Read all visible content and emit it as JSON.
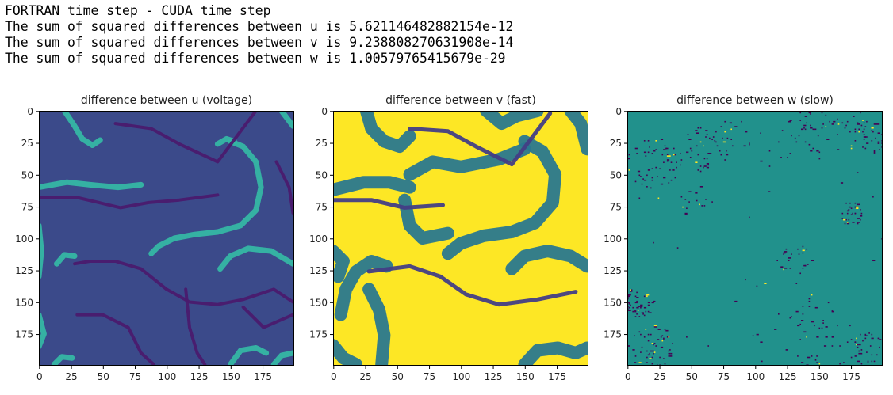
{
  "output_lines": [
    "FORTRAN time step - CUDA time step",
    "The sum of squared differences between u is 5.621146482882154e-12",
    "The sum of squared differences between v is 9.238808270631908e-14",
    "The sum of squared differences between w is 1.00579765415679e-29"
  ],
  "colors": {
    "viridis_dark": "#440154",
    "viridis_blue": "#3b528b",
    "viridis_teal": "#21918c",
    "viridis_green": "#5ec962",
    "viridis_yellow": "#fde725"
  },
  "chart_data": [
    {
      "type": "heatmap",
      "title": "difference between u (voltage)",
      "colormap": "viridis",
      "background": "#3b4a8a",
      "xlim": [
        0,
        199
      ],
      "ylim": [
        199,
        0
      ],
      "xticks": [
        0,
        25,
        50,
        75,
        100,
        125,
        150,
        175
      ],
      "yticks": [
        0,
        25,
        50,
        75,
        100,
        125,
        150,
        175
      ],
      "curves": [
        {
          "color": "#35b6a4",
          "width": 7,
          "points": [
            [
              20,
              0
            ],
            [
              28,
              12
            ],
            [
              34,
              22
            ],
            [
              42,
              27
            ],
            [
              48,
              23
            ]
          ]
        },
        {
          "color": "#35b6a4",
          "width": 7,
          "points": [
            [
              0,
              60
            ],
            [
              22,
              56
            ],
            [
              40,
              58
            ],
            [
              62,
              60
            ],
            [
              80,
              58
            ]
          ]
        },
        {
          "color": "#35b6a4",
          "width": 7,
          "points": [
            [
              150,
              24
            ],
            [
              160,
              28
            ],
            [
              170,
              40
            ],
            [
              174,
              60
            ],
            [
              170,
              78
            ],
            [
              158,
              90
            ],
            [
              140,
              95
            ],
            [
              122,
              97
            ],
            [
              106,
              100
            ],
            [
              94,
              106
            ],
            [
              88,
              112
            ]
          ]
        },
        {
          "color": "#35b6a4",
          "width": 7,
          "points": [
            [
              140,
              26
            ],
            [
              147,
              22
            ],
            [
              153,
              24
            ]
          ]
        },
        {
          "color": "#35b6a4",
          "width": 7,
          "points": [
            [
              142,
              124
            ],
            [
              150,
              114
            ],
            [
              164,
              108
            ],
            [
              182,
              110
            ],
            [
              199,
              120
            ]
          ]
        },
        {
          "color": "#35b6a4",
          "width": 7,
          "points": [
            [
              14,
              120
            ],
            [
              20,
              113
            ],
            [
              28,
              114
            ]
          ]
        },
        {
          "color": "#35b6a4",
          "width": 7,
          "points": [
            [
              0,
              90
            ],
            [
              2,
              110
            ],
            [
              0,
              130
            ]
          ]
        },
        {
          "color": "#35b6a4",
          "width": 7,
          "points": [
            [
              0,
              160
            ],
            [
              4,
              175
            ],
            [
              0,
              185
            ]
          ]
        },
        {
          "color": "#35b6a4",
          "width": 7,
          "points": [
            [
              150,
              199
            ],
            [
              158,
              188
            ],
            [
              170,
              186
            ],
            [
              178,
              190
            ]
          ]
        },
        {
          "color": "#35b6a4",
          "width": 7,
          "points": [
            [
              184,
              199
            ],
            [
              190,
              192
            ],
            [
              199,
              190
            ]
          ]
        },
        {
          "color": "#35b6a4",
          "width": 7,
          "points": [
            [
              12,
              199
            ],
            [
              18,
              193
            ],
            [
              26,
              194
            ]
          ]
        },
        {
          "color": "#35b6a4",
          "width": 7,
          "points": [
            [
              190,
              0
            ],
            [
              199,
              12
            ]
          ]
        },
        {
          "color": "#4a1a6e",
          "width": 4,
          "points": [
            [
              60,
              10
            ],
            [
              88,
              14
            ],
            [
              110,
              26
            ],
            [
              140,
              40
            ],
            [
              170,
              0
            ]
          ]
        },
        {
          "color": "#4a1a6e",
          "width": 4,
          "points": [
            [
              0,
              68
            ],
            [
              30,
              68
            ],
            [
              64,
              76
            ],
            [
              86,
              72
            ],
            [
              110,
              70
            ],
            [
              140,
              66
            ]
          ]
        },
        {
          "color": "#4a1a6e",
          "width": 4,
          "points": [
            [
              28,
              120
            ],
            [
              40,
              118
            ],
            [
              60,
              118
            ],
            [
              80,
              124
            ],
            [
              100,
              140
            ],
            [
              118,
              150
            ],
            [
              140,
              152
            ],
            [
              160,
              148
            ],
            [
              184,
              140
            ],
            [
              199,
              150
            ]
          ]
        },
        {
          "color": "#4a1a6e",
          "width": 4,
          "points": [
            [
              30,
              160
            ],
            [
              50,
              160
            ],
            [
              70,
              170
            ],
            [
              80,
              190
            ],
            [
              90,
              199
            ]
          ]
        },
        {
          "color": "#4a1a6e",
          "width": 4,
          "points": [
            [
              115,
              140
            ],
            [
              118,
              170
            ],
            [
              124,
              190
            ],
            [
              130,
              199
            ]
          ]
        },
        {
          "color": "#4a1a6e",
          "width": 4,
          "points": [
            [
              186,
              40
            ],
            [
              196,
              60
            ],
            [
              199,
              80
            ]
          ]
        },
        {
          "color": "#4a1a6e",
          "width": 4,
          "points": [
            [
              160,
              154
            ],
            [
              176,
              170
            ],
            [
              199,
              160
            ]
          ]
        }
      ]
    },
    {
      "type": "heatmap",
      "title": "difference between v (fast)",
      "colormap": "viridis",
      "background": "#fde725",
      "xlim": [
        0,
        199
      ],
      "ylim": [
        199,
        0
      ],
      "xticks": [
        0,
        25,
        50,
        75,
        100,
        125,
        150,
        175
      ],
      "yticks": [
        0,
        25,
        50,
        75,
        100,
        125,
        150,
        175
      ],
      "curves": [
        {
          "color": "#2a788e",
          "width": 16,
          "points": [
            [
              26,
              0
            ],
            [
              30,
              14
            ],
            [
              40,
              24
            ],
            [
              52,
              28
            ],
            [
              60,
              20
            ]
          ]
        },
        {
          "color": "#2a788e",
          "width": 16,
          "points": [
            [
              0,
              62
            ],
            [
              24,
              56
            ],
            [
              44,
              56
            ],
            [
              60,
              60
            ]
          ]
        },
        {
          "color": "#2a788e",
          "width": 16,
          "points": [
            [
              150,
              24
            ],
            [
              164,
              32
            ],
            [
              174,
              50
            ],
            [
              172,
              72
            ],
            [
              158,
              88
            ],
            [
              140,
              95
            ],
            [
              118,
              98
            ],
            [
              100,
              104
            ],
            [
              90,
              112
            ]
          ]
        },
        {
          "color": "#2a788e",
          "width": 16,
          "points": [
            [
              6,
              160
            ],
            [
              10,
              140
            ],
            [
              18,
              126
            ],
            [
              30,
              118
            ],
            [
              42,
              122
            ]
          ]
        },
        {
          "color": "#2a788e",
          "width": 16,
          "points": [
            [
              60,
              50
            ],
            [
              78,
              40
            ],
            [
              100,
              44
            ],
            [
              130,
              38
            ],
            [
              150,
              30
            ]
          ]
        },
        {
          "color": "#2a788e",
          "width": 16,
          "points": [
            [
              56,
              70
            ],
            [
              60,
              90
            ],
            [
              70,
              100
            ],
            [
              90,
              96
            ]
          ]
        },
        {
          "color": "#2a788e",
          "width": 16,
          "points": [
            [
              28,
              140
            ],
            [
              36,
              156
            ],
            [
              40,
              176
            ],
            [
              38,
              199
            ]
          ]
        },
        {
          "color": "#2a788e",
          "width": 16,
          "points": [
            [
              140,
              124
            ],
            [
              150,
              114
            ],
            [
              168,
              110
            ],
            [
              186,
              114
            ],
            [
              199,
              122
            ]
          ]
        },
        {
          "color": "#2a788e",
          "width": 16,
          "points": [
            [
              150,
              199
            ],
            [
              160,
              188
            ],
            [
              176,
              186
            ],
            [
              190,
              190
            ],
            [
              199,
              186
            ]
          ]
        },
        {
          "color": "#2a788e",
          "width": 16,
          "points": [
            [
              120,
              0
            ],
            [
              132,
              10
            ],
            [
              144,
              4
            ],
            [
              160,
              0
            ]
          ]
        },
        {
          "color": "#2a788e",
          "width": 16,
          "points": [
            [
              0,
              110
            ],
            [
              8,
              118
            ],
            [
              4,
              130
            ]
          ]
        },
        {
          "color": "#2a788e",
          "width": 16,
          "points": [
            [
              186,
              0
            ],
            [
              194,
              10
            ],
            [
              199,
              30
            ]
          ]
        },
        {
          "color": "#2a788e",
          "width": 16,
          "points": [
            [
              0,
              184
            ],
            [
              8,
              194
            ],
            [
              18,
              199
            ]
          ]
        },
        {
          "color": "#433e85",
          "width": 5,
          "points": [
            [
              60,
              14
            ],
            [
              90,
              16
            ],
            [
              112,
              28
            ],
            [
              140,
              42
            ],
            [
              170,
              2
            ]
          ]
        },
        {
          "color": "#433e85",
          "width": 5,
          "points": [
            [
              0,
              70
            ],
            [
              30,
              70
            ],
            [
              56,
              76
            ],
            [
              86,
              74
            ]
          ]
        },
        {
          "color": "#433e85",
          "width": 5,
          "points": [
            [
              28,
              126
            ],
            [
              60,
              122
            ],
            [
              84,
              130
            ],
            [
              104,
              144
            ],
            [
              130,
              152
            ],
            [
              160,
              148
            ],
            [
              190,
              142
            ]
          ]
        }
      ]
    },
    {
      "type": "heatmap",
      "title": "difference between w (slow)",
      "colormap": "viridis",
      "background": "#21918c",
      "xlim": [
        0,
        199
      ],
      "ylim": [
        199,
        0
      ],
      "xticks": [
        0,
        25,
        50,
        75,
        100,
        125,
        150,
        175
      ],
      "yticks": [
        0,
        25,
        50,
        75,
        100,
        125,
        150,
        175
      ],
      "speckle": {
        "dark_color": "#440154",
        "light_color": "#fde725",
        "dark_count": 520,
        "light_count": 45,
        "seed": 7,
        "clusters": [
          {
            "cx": 20,
            "cy": 40,
            "r": 22,
            "w": 3
          },
          {
            "cx": 155,
            "cy": 8,
            "r": 30,
            "w": 4
          },
          {
            "cx": 100,
            "cy": 5,
            "r": 40,
            "w": 2
          },
          {
            "cx": 190,
            "cy": 20,
            "r": 14,
            "w": 2
          },
          {
            "cx": 8,
            "cy": 150,
            "r": 12,
            "w": 3
          },
          {
            "cx": 18,
            "cy": 185,
            "r": 18,
            "w": 3
          },
          {
            "cx": 150,
            "cy": 175,
            "r": 30,
            "w": 2
          },
          {
            "cx": 175,
            "cy": 80,
            "r": 10,
            "w": 2
          },
          {
            "cx": 60,
            "cy": 30,
            "r": 18,
            "w": 2
          },
          {
            "cx": 55,
            "cy": 70,
            "r": 15,
            "w": 1
          },
          {
            "cx": 185,
            "cy": 185,
            "r": 14,
            "w": 2
          },
          {
            "cx": 130,
            "cy": 115,
            "r": 14,
            "w": 1
          },
          {
            "cx": 100,
            "cy": 100,
            "r": 100,
            "w": 2
          }
        ]
      }
    }
  ]
}
